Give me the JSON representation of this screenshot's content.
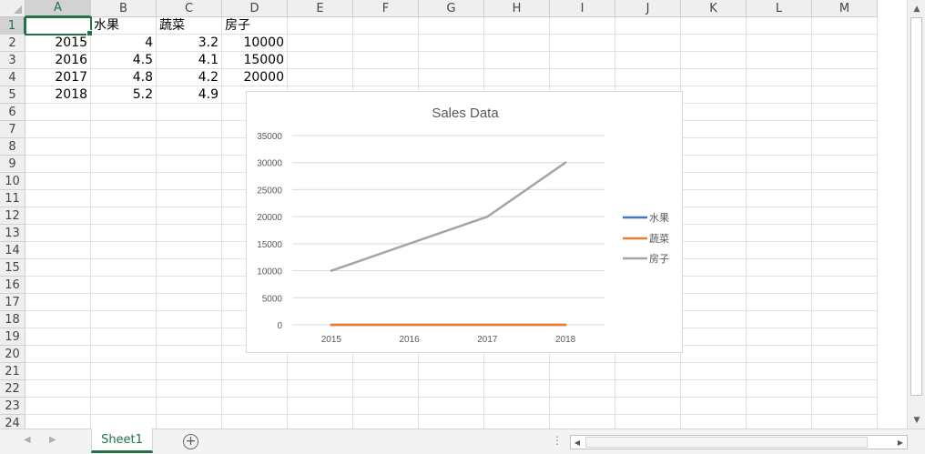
{
  "columns": [
    "A",
    "B",
    "C",
    "D",
    "E",
    "F",
    "G",
    "H",
    "I",
    "J",
    "K",
    "L",
    "M"
  ],
  "rows": [
    "1",
    "2",
    "3",
    "4",
    "5",
    "6",
    "7",
    "8",
    "9",
    "10",
    "11",
    "12",
    "13",
    "14",
    "15",
    "16",
    "17",
    "18",
    "19",
    "20",
    "21",
    "22",
    "23",
    "24"
  ],
  "cells": [
    [
      "",
      "水果",
      "蔬菜",
      "房子"
    ],
    [
      "2015",
      "4",
      "3.2",
      "10000"
    ],
    [
      "2016",
      "4.5",
      "4.1",
      "15000"
    ],
    [
      "2017",
      "4.8",
      "4.2",
      "20000"
    ],
    [
      "2018",
      "5.2",
      "4.9",
      ""
    ]
  ],
  "active_cell": "A1",
  "sheet_tab": {
    "label": "Sheet1"
  },
  "add_sheet_icon": "plus-circle-icon",
  "colors": {
    "accent": "#217346",
    "series_1": "#4472c4",
    "series_2": "#ed7d31",
    "series_3": "#a5a5a5"
  },
  "chart_data": {
    "type": "line",
    "title": "Sales Data",
    "categories": [
      "2015",
      "2016",
      "2017",
      "2018"
    ],
    "series": [
      {
        "name": "水果",
        "values": [
          4,
          4.5,
          4.8,
          5.2
        ],
        "color": "#4472c4"
      },
      {
        "name": "蔬菜",
        "values": [
          3.2,
          4.1,
          4.2,
          4.9
        ],
        "color": "#ed7d31"
      },
      {
        "name": "房子",
        "values": [
          10000,
          15000,
          20000,
          30000
        ],
        "color": "#a5a5a5"
      }
    ],
    "ylim": [
      0,
      35000
    ],
    "yticks": [
      0,
      5000,
      10000,
      15000,
      20000,
      25000,
      30000,
      35000
    ],
    "grid": true,
    "legend": "right"
  }
}
